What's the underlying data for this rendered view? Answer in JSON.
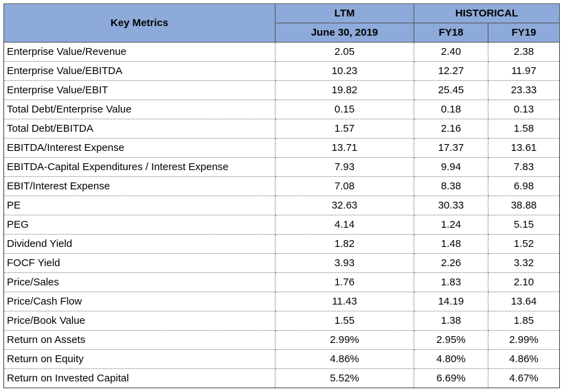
{
  "header": {
    "key_metrics": "Key Metrics",
    "ltm": "LTM",
    "historical": "HISTORICAL",
    "ltm_date": "June 30, 2019",
    "fy18": "FY18",
    "fy19": "FY19"
  },
  "rows": [
    {
      "label": "Enterprise Value/Revenue",
      "ltm": "2.05",
      "fy18": "2.40",
      "fy19": "2.38"
    },
    {
      "label": "Enterprise Value/EBITDA",
      "ltm": "10.23",
      "fy18": "12.27",
      "fy19": "11.97"
    },
    {
      "label": "Enterprise Value/EBIT",
      "ltm": "19.82",
      "fy18": "25.45",
      "fy19": "23.33"
    },
    {
      "label": "Total Debt/Enterprise Value",
      "ltm": "0.15",
      "fy18": "0.18",
      "fy19": "0.13"
    },
    {
      "label": "Total Debt/EBITDA",
      "ltm": "1.57",
      "fy18": "2.16",
      "fy19": "1.58"
    },
    {
      "label": "EBITDA/Interest Expense",
      "ltm": "13.71",
      "fy18": "17.37",
      "fy19": "13.61"
    },
    {
      "label": "EBITDA-Capital Expenditures / Interest Expense",
      "ltm": "7.93",
      "fy18": "9.94",
      "fy19": "7.83"
    },
    {
      "label": "EBIT/Interest Expense",
      "ltm": "7.08",
      "fy18": "8.38",
      "fy19": "6.98"
    },
    {
      "label": "PE",
      "ltm": "32.63",
      "fy18": "30.33",
      "fy19": "38.88"
    },
    {
      "label": "PEG",
      "ltm": "4.14",
      "fy18": "1.24",
      "fy19": "5.15"
    },
    {
      "label": "Dividend Yield",
      "ltm": "1.82",
      "fy18": "1.48",
      "fy19": "1.52"
    },
    {
      "label": "FOCF Yield",
      "ltm": "3.93",
      "fy18": "2.26",
      "fy19": "3.32"
    },
    {
      "label": "Price/Sales",
      "ltm": "1.76",
      "fy18": "1.83",
      "fy19": "2.10"
    },
    {
      "label": "Price/Cash Flow",
      "ltm": "11.43",
      "fy18": "14.19",
      "fy19": "13.64"
    },
    {
      "label": "Price/Book Value",
      "ltm": "1.55",
      "fy18": "1.38",
      "fy19": "1.85"
    },
    {
      "label": "Return on Assets",
      "ltm": "2.99%",
      "fy18": "2.95%",
      "fy19": "2.99%"
    },
    {
      "label": "Return on Equity",
      "ltm": "4.86%",
      "fy18": "4.80%",
      "fy19": "4.86%"
    },
    {
      "label": "Return on Invested Capital",
      "ltm": "5.52%",
      "fy18": "6.69%",
      "fy19": "4.67%"
    }
  ]
}
